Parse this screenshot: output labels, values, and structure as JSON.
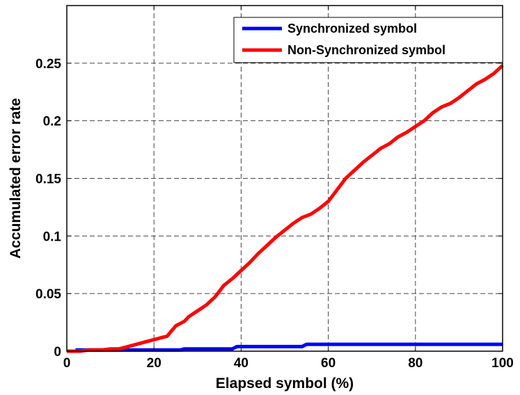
{
  "chart_data": {
    "type": "line",
    "xlabel": "Elapsed symbol (%)",
    "ylabel": "Accumulated error rate",
    "xlim": [
      0,
      100
    ],
    "ylim": [
      0,
      0.3
    ],
    "grid": true,
    "legend_position": "top-right",
    "x_ticks": [
      "0",
      "20",
      "40",
      "60",
      "80",
      "100"
    ],
    "y_ticks": [
      "0",
      "0.05",
      "0.1",
      "0.15",
      "0.2",
      "0.25"
    ],
    "series": [
      {
        "name": "Synchronized symbol",
        "color": "#0000ff",
        "x": [
          2,
          10,
          20,
          26,
          27,
          38,
          39,
          54,
          55,
          70,
          85,
          100
        ],
        "y": [
          0.001,
          0.001,
          0.001,
          0.001,
          0.002,
          0.002,
          0.004,
          0.004,
          0.006,
          0.006,
          0.006,
          0.006
        ]
      },
      {
        "name": "Non-Synchronized symbol",
        "color": "#ff0000",
        "x": [
          0,
          3,
          5,
          8,
          10,
          12,
          14,
          16,
          18,
          20,
          22,
          23,
          25,
          27,
          28,
          30,
          32,
          34,
          36,
          38,
          40,
          42,
          44,
          46,
          48,
          50,
          52,
          54,
          56,
          58,
          60,
          62,
          64,
          66,
          68,
          70,
          72,
          74,
          76,
          78,
          80,
          82,
          84,
          86,
          88,
          90,
          92,
          94,
          96,
          98,
          100
        ],
        "y": [
          0,
          0,
          0.001,
          0.001,
          0.002,
          0.002,
          0.004,
          0.006,
          0.008,
          0.01,
          0.012,
          0.013,
          0.022,
          0.026,
          0.03,
          0.035,
          0.04,
          0.047,
          0.057,
          0.063,
          0.07,
          0.077,
          0.085,
          0.092,
          0.099,
          0.105,
          0.111,
          0.116,
          0.119,
          0.124,
          0.13,
          0.14,
          0.15,
          0.157,
          0.164,
          0.17,
          0.176,
          0.18,
          0.186,
          0.19,
          0.195,
          0.2,
          0.207,
          0.212,
          0.215,
          0.22,
          0.226,
          0.232,
          0.236,
          0.241,
          0.248
        ]
      }
    ]
  }
}
